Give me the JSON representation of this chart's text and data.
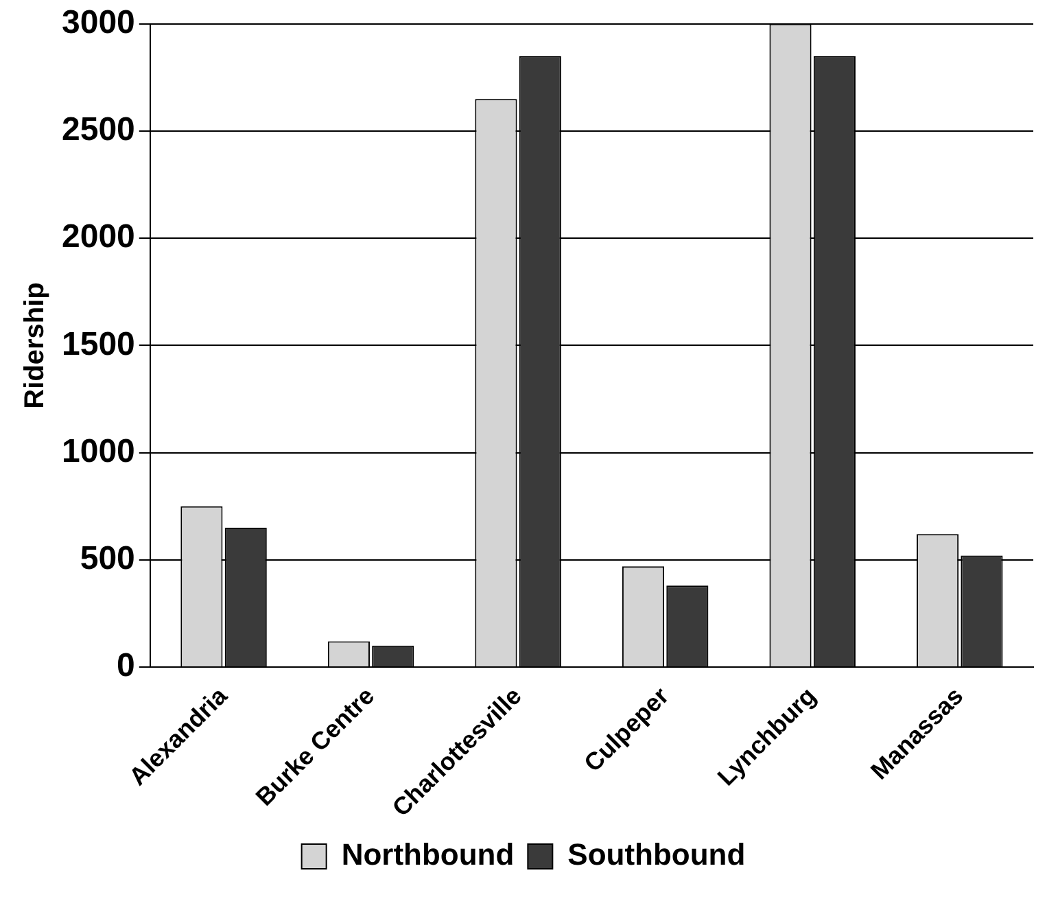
{
  "chart_data": {
    "type": "bar",
    "ylabel": "Ridership",
    "categories": [
      "Alexandria",
      "Burke Centre",
      "Charlottesville",
      "Culpeper",
      "Lynchburg",
      "Manassas"
    ],
    "series": [
      {
        "name": "Northbound",
        "color": "#d4d4d4",
        "values": [
          750,
          120,
          2650,
          470,
          3000,
          620
        ]
      },
      {
        "name": "Southbound",
        "color": "#3a3a3a",
        "values": [
          650,
          100,
          2850,
          380,
          2850,
          520
        ]
      }
    ],
    "ylim": [
      0,
      3000
    ],
    "yticks": [
      0,
      500,
      1000,
      1500,
      2000,
      2500,
      3000
    ],
    "grid": "y",
    "legend": "bottom"
  }
}
